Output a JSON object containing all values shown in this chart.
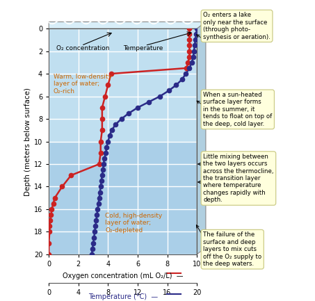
{
  "depth_oxygen": [
    0,
    0.5,
    1,
    1.5,
    2,
    2.5,
    3,
    3.5,
    4,
    5,
    6,
    7,
    8,
    9,
    10,
    11,
    12,
    13,
    14,
    15,
    15.5,
    16,
    16.5,
    17,
    17.5,
    18,
    19,
    20
  ],
  "oxygen": [
    9.5,
    9.5,
    9.5,
    9.5,
    9.5,
    9.5,
    9.4,
    9.3,
    4.2,
    4.0,
    3.8,
    3.6,
    3.6,
    3.6,
    3.5,
    3.5,
    3.4,
    1.5,
    0.9,
    0.4,
    0.3,
    0.2,
    0.15,
    0.1,
    0.05,
    0.05,
    0.0,
    0.0
  ],
  "depth_temp": [
    0,
    0.5,
    1,
    1.5,
    2,
    2.5,
    3,
    3.5,
    4,
    4.5,
    5,
    5.5,
    6,
    6.5,
    7,
    7.5,
    8,
    8.5,
    9,
    9.5,
    10,
    10.5,
    11,
    11.5,
    12,
    12.5,
    13,
    13.5,
    14,
    14.5,
    15,
    15.5,
    16,
    16.5,
    17,
    17.5,
    18,
    18.5,
    19,
    19.5,
    20
  ],
  "temperature": [
    20.0,
    19.9,
    19.8,
    19.7,
    19.6,
    19.5,
    19.3,
    19.0,
    18.5,
    18.0,
    17.2,
    16.2,
    15.0,
    13.5,
    12.0,
    10.8,
    9.8,
    9.0,
    8.5,
    8.2,
    8.0,
    7.8,
    7.7,
    7.5,
    7.4,
    7.3,
    7.2,
    7.1,
    7.0,
    6.9,
    6.8,
    6.7,
    6.6,
    6.5,
    6.4,
    6.3,
    6.2,
    6.1,
    6.0,
    5.9,
    5.8
  ],
  "oxygen_color": "#cc2222",
  "temp_color": "#2b2b88",
  "bg_color_top": "#c0dff0",
  "bg_color_bottom": "#9ecae1",
  "thermocline_bg": "#aacfe8",
  "grid_color": "#ffffff",
  "xlim_oxygen": [
    0,
    10
  ],
  "ylim": [
    0,
    20
  ],
  "xlabel_oxygen": "Oxygen concentration (mL O₂/L)",
  "xlabel_temp": "Temperature (°C)",
  "ylabel": "Depth (meters below surface)",
  "xticks_oxygen": [
    0,
    2,
    4,
    6,
    8,
    10
  ],
  "xticks_temp": [
    0,
    4,
    8,
    12,
    16,
    20
  ],
  "yticks": [
    0,
    2,
    4,
    6,
    8,
    10,
    12,
    14,
    16,
    18,
    20
  ],
  "annotation1": "O₂ enters a lake\nonly near the surface\n(through photo-\nsynthesis or aeration).",
  "annotation2": "When a sun-heated\nsurface layer forms\nin the summer, it\ntends to float on top of\nthe deep, cold layer.",
  "annotation3_pre": "Little mixing between\nthe two layers occurs\nacross the ",
  "annotation3_bold": "thermocline",
  "annotation3_post": ",\nthe transition layer\nwhere temperature\nchanges rapidly with\ndepth.",
  "annotation4": "The failure of the\nsurface and deep\nlayers to mix cuts\noff the O₂ supply to\nthe deep waters.",
  "warm_layer_text": "Warm, low-density\nlayer of water;\nO₂-rich",
  "cold_layer_text": "Cold, high-density\nlayer of water;\nO₂-depleted",
  "o2_label": "O₂ concentration",
  "temp_label": "Temperature",
  "ann_facecolor": "#ffffdd",
  "ann_edgecolor": "#cccc88",
  "text_color_layer": "#cc6600"
}
